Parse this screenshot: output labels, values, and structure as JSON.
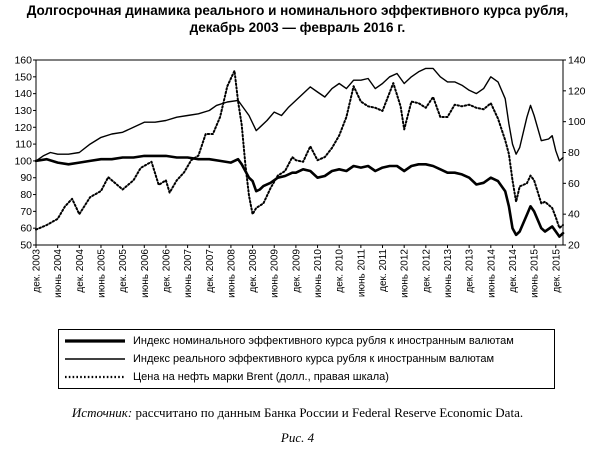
{
  "chart_data": {
    "type": "line",
    "title": "Долгосрочная динамика реального и номинального эффективного курса рубля, декабрь 2003 — февраль 2016 г.",
    "xlabel": "",
    "ylabel": "",
    "y_left": {
      "range": [
        50,
        160
      ],
      "ticks": [
        50,
        60,
        70,
        80,
        90,
        100,
        110,
        120,
        130,
        140,
        150,
        160
      ]
    },
    "y_right": {
      "range": [
        20,
        140
      ],
      "ticks": [
        20,
        40,
        60,
        80,
        100,
        120,
        140
      ]
    },
    "x_range": [
      "2003-12",
      "2016-02"
    ],
    "x_tick_labels": [
      "дек. 2003",
      "июнь 2004",
      "дек. 2004",
      "июнь 2005",
      "дек. 2005",
      "июнь 2006",
      "дек. 2006",
      "июнь 2007",
      "дек. 2007",
      "июнь 2008",
      "дек. 2008",
      "июнь 2009",
      "дек. 2009",
      "июнь 2010",
      "дек. 2010",
      "июнь 2011",
      "дек. 2011",
      "июнь 2012",
      "дек. 2012",
      "июнь 2013",
      "дек. 2013",
      "июнь 2014",
      "дек. 2014",
      "июнь 2015",
      "дек. 2015"
    ],
    "grid": false,
    "legend_position": "bottom",
    "series": [
      {
        "name": "Индекс номинального эффективного курса рубля к иностранным валютам",
        "axis": "left",
        "style": "solid-thick",
        "points": [
          [
            "2003-12",
            100
          ],
          [
            "2004-03",
            101
          ],
          [
            "2004-06",
            99
          ],
          [
            "2004-09",
            98
          ],
          [
            "2004-12",
            99
          ],
          [
            "2005-03",
            100
          ],
          [
            "2005-06",
            101
          ],
          [
            "2005-09",
            101
          ],
          [
            "2005-12",
            102
          ],
          [
            "2006-03",
            102
          ],
          [
            "2006-06",
            103
          ],
          [
            "2006-09",
            103
          ],
          [
            "2006-12",
            103
          ],
          [
            "2007-03",
            102
          ],
          [
            "2007-06",
            102
          ],
          [
            "2007-09",
            101
          ],
          [
            "2007-12",
            101
          ],
          [
            "2008-03",
            100
          ],
          [
            "2008-06",
            99
          ],
          [
            "2008-08",
            101
          ],
          [
            "2008-09",
            98
          ],
          [
            "2008-11",
            90
          ],
          [
            "2008-12",
            88
          ],
          [
            "2009-01",
            82
          ],
          [
            "2009-02",
            83
          ],
          [
            "2009-03",
            85
          ],
          [
            "2009-05",
            87
          ],
          [
            "2009-07",
            90
          ],
          [
            "2009-09",
            91
          ],
          [
            "2009-11",
            93
          ],
          [
            "2009-12",
            93
          ],
          [
            "2010-02",
            95
          ],
          [
            "2010-04",
            94
          ],
          [
            "2010-06",
            90
          ],
          [
            "2010-08",
            91
          ],
          [
            "2010-10",
            94
          ],
          [
            "2010-12",
            95
          ],
          [
            "2011-02",
            94
          ],
          [
            "2011-04",
            97
          ],
          [
            "2011-06",
            96
          ],
          [
            "2011-08",
            97
          ],
          [
            "2011-10",
            94
          ],
          [
            "2011-12",
            96
          ],
          [
            "2012-02",
            97
          ],
          [
            "2012-04",
            97
          ],
          [
            "2012-06",
            94
          ],
          [
            "2012-08",
            97
          ],
          [
            "2012-10",
            98
          ],
          [
            "2012-12",
            98
          ],
          [
            "2013-02",
            97
          ],
          [
            "2013-04",
            95
          ],
          [
            "2013-06",
            93
          ],
          [
            "2013-08",
            93
          ],
          [
            "2013-10",
            92
          ],
          [
            "2013-12",
            90
          ],
          [
            "2014-02",
            86
          ],
          [
            "2014-04",
            87
          ],
          [
            "2014-06",
            90
          ],
          [
            "2014-08",
            88
          ],
          [
            "2014-10",
            82
          ],
          [
            "2014-11",
            73
          ],
          [
            "2014-12",
            60
          ],
          [
            "2015-01",
            56
          ],
          [
            "2015-02",
            58
          ],
          [
            "2015-04",
            68
          ],
          [
            "2015-05",
            73
          ],
          [
            "2015-06",
            70
          ],
          [
            "2015-08",
            60
          ],
          [
            "2015-09",
            58
          ],
          [
            "2015-11",
            61
          ],
          [
            "2015-12",
            58
          ],
          [
            "2016-01",
            55
          ],
          [
            "2016-02",
            57
          ]
        ]
      },
      {
        "name": "Индекс реального эффективного курса рубля к иностранным валютам",
        "axis": "left",
        "style": "solid",
        "points": [
          [
            "2003-12",
            100
          ],
          [
            "2004-02",
            103
          ],
          [
            "2004-04",
            105
          ],
          [
            "2004-06",
            104
          ],
          [
            "2004-09",
            104
          ],
          [
            "2004-12",
            105
          ],
          [
            "2005-03",
            110
          ],
          [
            "2005-06",
            114
          ],
          [
            "2005-09",
            116
          ],
          [
            "2005-12",
            117
          ],
          [
            "2006-03",
            120
          ],
          [
            "2006-06",
            123
          ],
          [
            "2006-09",
            123
          ],
          [
            "2006-12",
            124
          ],
          [
            "2007-03",
            126
          ],
          [
            "2007-06",
            127
          ],
          [
            "2007-09",
            128
          ],
          [
            "2007-12",
            130
          ],
          [
            "2008-02",
            133
          ],
          [
            "2008-05",
            135
          ],
          [
            "2008-08",
            136
          ],
          [
            "2008-09",
            133
          ],
          [
            "2008-11",
            127
          ],
          [
            "2009-01",
            118
          ],
          [
            "2009-02",
            120
          ],
          [
            "2009-04",
            124
          ],
          [
            "2009-06",
            129
          ],
          [
            "2009-08",
            127
          ],
          [
            "2009-10",
            132
          ],
          [
            "2009-12",
            136
          ],
          [
            "2010-02",
            140
          ],
          [
            "2010-04",
            144
          ],
          [
            "2010-06",
            141
          ],
          [
            "2010-08",
            138
          ],
          [
            "2010-10",
            143
          ],
          [
            "2010-12",
            146
          ],
          [
            "2011-02",
            143
          ],
          [
            "2011-04",
            148
          ],
          [
            "2011-06",
            148
          ],
          [
            "2011-08",
            149
          ],
          [
            "2011-10",
            143
          ],
          [
            "2011-12",
            146
          ],
          [
            "2012-02",
            150
          ],
          [
            "2012-04",
            152
          ],
          [
            "2012-06",
            146
          ],
          [
            "2012-08",
            150
          ],
          [
            "2012-10",
            153
          ],
          [
            "2012-12",
            155
          ],
          [
            "2013-02",
            155
          ],
          [
            "2013-04",
            150
          ],
          [
            "2013-06",
            147
          ],
          [
            "2013-08",
            147
          ],
          [
            "2013-10",
            145
          ],
          [
            "2013-12",
            142
          ],
          [
            "2014-02",
            140
          ],
          [
            "2014-04",
            143
          ],
          [
            "2014-06",
            150
          ],
          [
            "2014-08",
            147
          ],
          [
            "2014-10",
            137
          ],
          [
            "2014-11",
            122
          ],
          [
            "2014-12",
            110
          ],
          [
            "2015-01",
            104
          ],
          [
            "2015-02",
            108
          ],
          [
            "2015-04",
            126
          ],
          [
            "2015-05",
            133
          ],
          [
            "2015-06",
            127
          ],
          [
            "2015-08",
            112
          ],
          [
            "2015-10",
            113
          ],
          [
            "2015-11",
            115
          ],
          [
            "2015-12",
            106
          ],
          [
            "2016-01",
            100
          ],
          [
            "2016-02",
            102
          ]
        ]
      },
      {
        "name": "Цена на нефть марки Brent (долл., правая шкала)",
        "axis": "right",
        "style": "dotted",
        "points": [
          [
            "2003-12",
            30
          ],
          [
            "2004-03",
            33
          ],
          [
            "2004-06",
            37
          ],
          [
            "2004-08",
            45
          ],
          [
            "2004-10",
            50
          ],
          [
            "2004-12",
            40
          ],
          [
            "2005-03",
            51
          ],
          [
            "2005-06",
            55
          ],
          [
            "2005-08",
            64
          ],
          [
            "2005-10",
            60
          ],
          [
            "2005-12",
            56
          ],
          [
            "2006-03",
            62
          ],
          [
            "2006-05",
            70
          ],
          [
            "2006-08",
            74
          ],
          [
            "2006-10",
            59
          ],
          [
            "2006-12",
            62
          ],
          [
            "2007-01",
            54
          ],
          [
            "2007-03",
            62
          ],
          [
            "2007-05",
            67
          ],
          [
            "2007-07",
            75
          ],
          [
            "2007-09",
            78
          ],
          [
            "2007-11",
            92
          ],
          [
            "2008-01",
            92
          ],
          [
            "2008-03",
            103
          ],
          [
            "2008-05",
            123
          ],
          [
            "2008-07",
            133
          ],
          [
            "2008-08",
            113
          ],
          [
            "2008-09",
            98
          ],
          [
            "2008-10",
            72
          ],
          [
            "2008-11",
            52
          ],
          [
            "2008-12",
            40
          ],
          [
            "2009-01",
            44
          ],
          [
            "2009-03",
            47
          ],
          [
            "2009-05",
            57
          ],
          [
            "2009-07",
            65
          ],
          [
            "2009-09",
            68
          ],
          [
            "2009-11",
            77
          ],
          [
            "2009-12",
            75
          ],
          [
            "2010-02",
            74
          ],
          [
            "2010-04",
            84
          ],
          [
            "2010-06",
            75
          ],
          [
            "2010-08",
            77
          ],
          [
            "2010-10",
            83
          ],
          [
            "2010-12",
            91
          ],
          [
            "2011-02",
            103
          ],
          [
            "2011-04",
            123
          ],
          [
            "2011-06",
            113
          ],
          [
            "2011-08",
            110
          ],
          [
            "2011-10",
            109
          ],
          [
            "2011-12",
            107
          ],
          [
            "2012-02",
            119
          ],
          [
            "2012-03",
            125
          ],
          [
            "2012-05",
            110
          ],
          [
            "2012-06",
            95
          ],
          [
            "2012-08",
            113
          ],
          [
            "2012-10",
            112
          ],
          [
            "2012-12",
            109
          ],
          [
            "2013-02",
            116
          ],
          [
            "2013-04",
            103
          ],
          [
            "2013-06",
            103
          ],
          [
            "2013-08",
            111
          ],
          [
            "2013-10",
            110
          ],
          [
            "2013-12",
            111
          ],
          [
            "2014-02",
            109
          ],
          [
            "2014-04",
            108
          ],
          [
            "2014-06",
            112
          ],
          [
            "2014-08",
            102
          ],
          [
            "2014-10",
            88
          ],
          [
            "2014-11",
            79
          ],
          [
            "2014-12",
            62
          ],
          [
            "2015-01",
            48
          ],
          [
            "2015-02",
            58
          ],
          [
            "2015-04",
            60
          ],
          [
            "2015-05",
            65
          ],
          [
            "2015-06",
            62
          ],
          [
            "2015-08",
            47
          ],
          [
            "2015-09",
            48
          ],
          [
            "2015-11",
            44
          ],
          [
            "2015-12",
            38
          ],
          [
            "2016-01",
            31
          ],
          [
            "2016-02",
            33
          ]
        ]
      }
    ]
  },
  "source": {
    "lead": "Источник:",
    "text": " рассчитано по данным Банка России и Federal Reserve Economic Data."
  },
  "caption": "Рис. 4"
}
